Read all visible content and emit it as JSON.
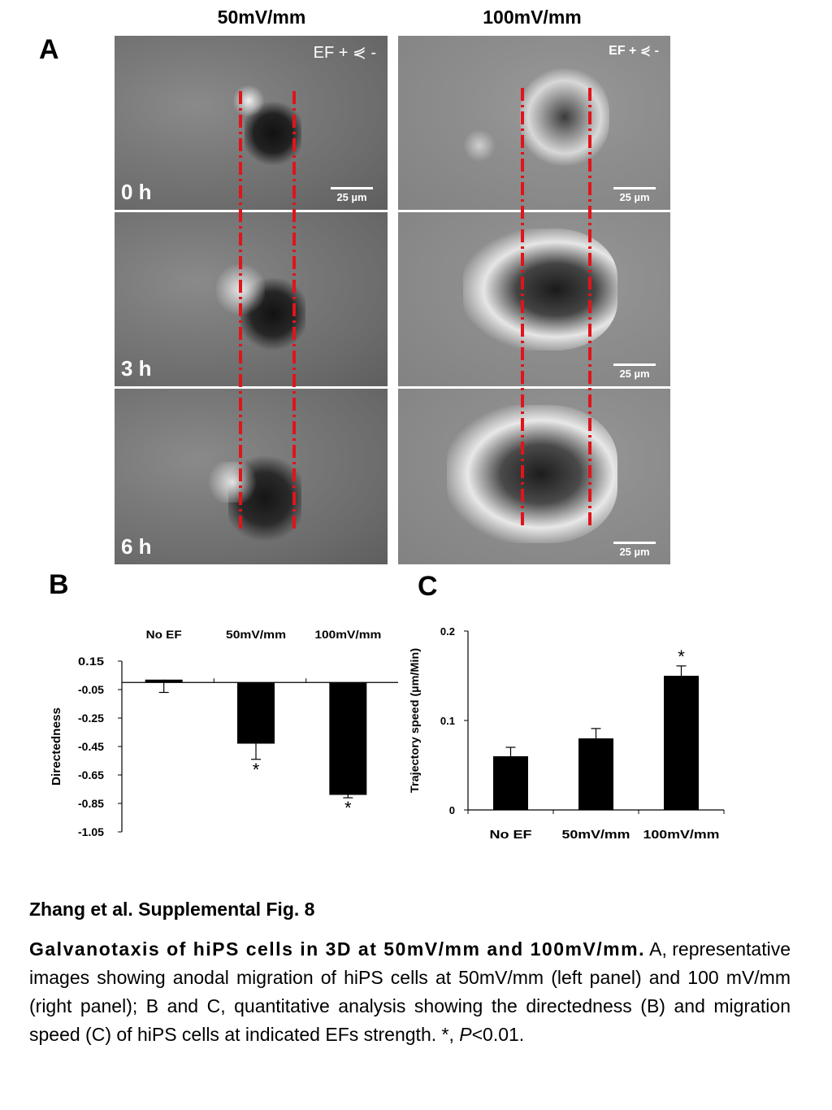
{
  "panel_a": {
    "letter": "A",
    "col_titles": [
      "50mV/mm",
      "100mV/mm"
    ],
    "ef_label": "EF + ⋞ -",
    "times": [
      "0 h",
      "3 h",
      "6 h"
    ],
    "scalebar": "25 µm"
  },
  "chart_b": {
    "letter": "B",
    "ylabel": "Directedness",
    "top_labels": [
      "No EF",
      "50mV/mm",
      "100mV/mm"
    ],
    "yticks": [
      "0.15",
      "-0.05",
      "-0.25",
      "-0.45",
      "-0.65",
      "-0.85",
      "-1.05"
    ],
    "star": "*"
  },
  "chart_c": {
    "letter": "C",
    "ylabel": "Trajectory speed (µm/Min)",
    "yticks": [
      "0.2",
      "0.1",
      "0"
    ],
    "star": "*"
  },
  "chart_data": [
    {
      "type": "bar",
      "categories": [
        "No EF",
        "50mV/mm",
        "100mV/mm"
      ],
      "values": [
        0.02,
        -0.43,
        -0.79
      ],
      "errors": [
        0.09,
        0.11,
        0.02
      ],
      "ylabel": "Directedness",
      "ylim": [
        -1.05,
        0.15
      ],
      "significant": [
        false,
        true,
        true
      ]
    },
    {
      "type": "bar",
      "categories": [
        "No EF",
        "50mV/mm",
        "100mV/mm"
      ],
      "values": [
        0.06,
        0.08,
        0.15
      ],
      "errors": [
        0.01,
        0.011,
        0.011
      ],
      "ylabel": "Trajectory speed (µm/Min)",
      "ylim": [
        0,
        0.2
      ],
      "significant": [
        false,
        false,
        true
      ]
    }
  ],
  "caption": {
    "title": "Zhang et al. Supplemental Fig. 8",
    "lead": "Galvanotaxis of hiPS cells in 3D at 50mV/mm and 100mV/mm.",
    "body": " A, representative images showing anodal migration of hiPS cells at 50mV/mm (left panel) and 100 mV/mm (right panel); B and C, quantitative analysis showing the directedness (B) and migration speed (C) of hiPS cells at indicated EFs strength. *, ",
    "p_italic": "P",
    "p_tail": "<0.01."
  }
}
